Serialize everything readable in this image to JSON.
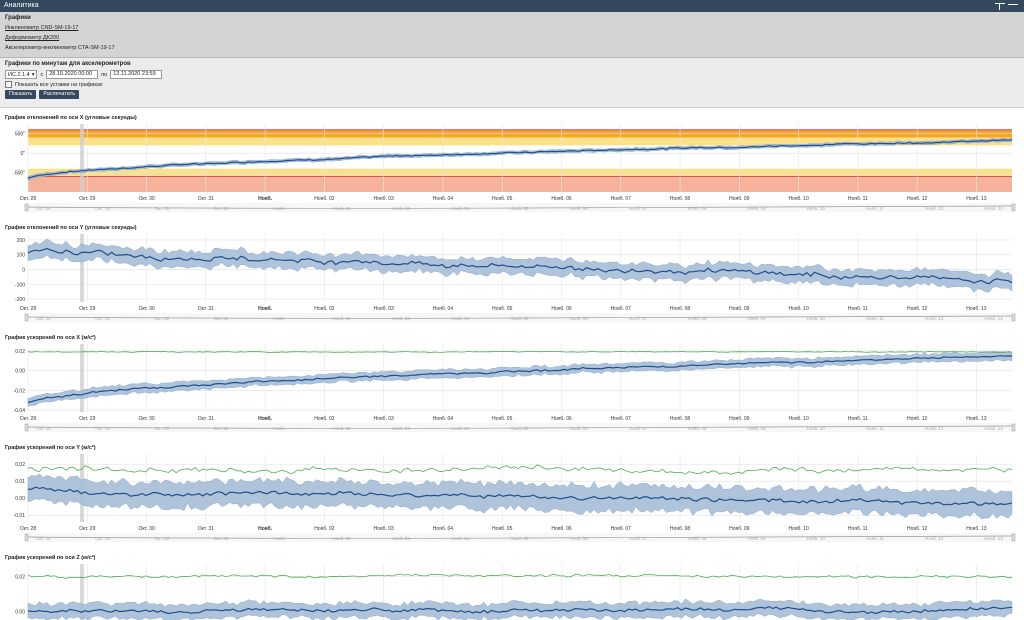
{
  "app": {
    "title": "Аналитика"
  },
  "graphs_panel": {
    "title": "Графики",
    "links": [
      "Инклинометр CND-SM-19-17",
      "Деформометр ДК200"
    ],
    "current": "Акселерометр-инклинометр CTA-SM-19-17"
  },
  "filter": {
    "title": "Графики по минутам для акселерометров",
    "sensor": "ИС.2.1.4",
    "from_label": "с",
    "from": "28.10.2020 00:00",
    "to_label": "по",
    "to": "13.11.2020 23:59",
    "show_settings_label": "Показать все уставки на графиках",
    "show_button": "Показать",
    "print_button": "Распечатать"
  },
  "colors": {
    "accent": "#34495e",
    "band": "#a7bed8",
    "line": "#1f4e8c",
    "green": "#4caf50",
    "red": "#d9534f",
    "orange": "#f5a623",
    "yellow": "#fbe18a",
    "pink": "#f6b39b"
  },
  "x_axis": {
    "labels": [
      "Окт. 28",
      "Окт. 29",
      "Окт. 30",
      "Окт. 31",
      "Нояб.",
      "Нояб. 02",
      "Нояб. 03",
      "Нояб. 04",
      "Нояб. 05",
      "Нояб. 06",
      "Нояб. 07",
      "Нояб. 08",
      "Нояб. 09",
      "Нояб. 10",
      "Нояб. 11",
      "Нояб. 12",
      "Нояб. 13"
    ],
    "bold": [
      4
    ]
  },
  "chart_data": [
    {
      "type": "area",
      "title": "График отклонений по оси X (угловые секунды)",
      "yticks": [
        "500",
        "0",
        "-500"
      ],
      "ylim": [
        -1000,
        750
      ],
      "thresholds": {
        "red_top": 600,
        "orange_top": 400,
        "yellow_top": 200,
        "yellow_bottom": -400,
        "orange_bottom": -600,
        "red_bottom": -1000
      },
      "series": [
        {
          "kind": "band_mean",
          "start": -650,
          "end": 330,
          "noise": 25,
          "band": 40
        }
      ]
    },
    {
      "type": "area",
      "title": "График отклонений по оси Y (угловые секунды)",
      "yticks": [
        "200",
        "100",
        "0",
        "-100",
        "-200"
      ],
      "ylim": [
        -220,
        240
      ],
      "series": [
        {
          "kind": "band_mean",
          "start": 120,
          "end": -80,
          "noise": 25,
          "band": 50
        }
      ]
    },
    {
      "type": "area",
      "title": "График ускорений по оси X (м/с²)",
      "yticks": [
        "0.02",
        "0.00",
        "-0.02",
        "-0.04"
      ],
      "ylim": [
        -0.042,
        0.027
      ],
      "series": [
        {
          "kind": "band_mean",
          "start": -0.033,
          "end": 0.015,
          "noise": 0.0015,
          "band": 0.004
        },
        {
          "kind": "line",
          "start": 0.019,
          "end": 0.019,
          "noise": 0.0006
        }
      ]
    },
    {
      "type": "area",
      "title": "График ускорений по оси Y (м/с²)",
      "yticks": [
        "0.02",
        "0.01",
        "0.00",
        "-0.01"
      ],
      "ylim": [
        -0.014,
        0.026
      ],
      "series": [
        {
          "kind": "band_mean",
          "start": 0.005,
          "end": -0.003,
          "noise": 0.0018,
          "band": 0.007
        },
        {
          "kind": "line",
          "start": 0.017,
          "end": 0.017,
          "noise": 0.0022
        }
      ]
    },
    {
      "type": "area",
      "title": "График ускорений по оси Z (м/с²)",
      "yticks": [
        "0.02",
        "0.00"
      ],
      "ylim": [
        -0.005,
        0.027
      ],
      "series": [
        {
          "kind": "band_mean",
          "start": 0.0,
          "end": 0.001,
          "noise": 0.0015,
          "band": 0.004
        },
        {
          "kind": "line",
          "start": 0.02,
          "end": 0.02,
          "noise": 0.0012
        }
      ]
    }
  ]
}
